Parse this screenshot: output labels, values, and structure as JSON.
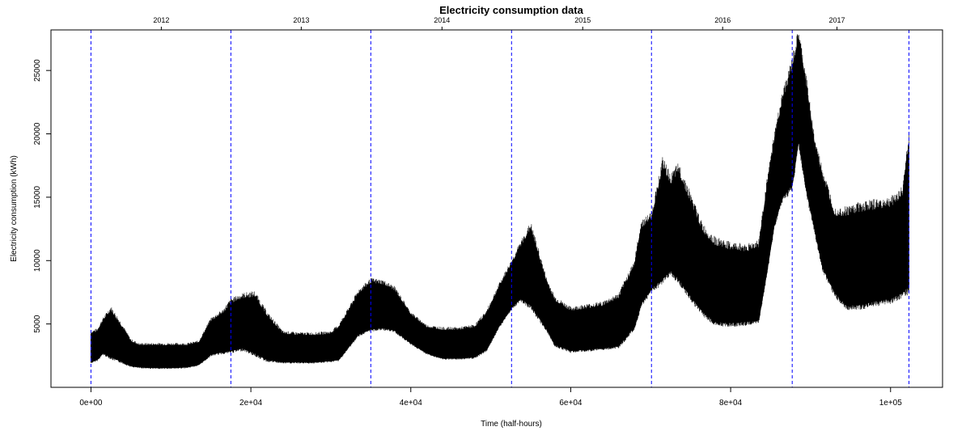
{
  "chart_data": {
    "type": "line",
    "title": "Electricity consumption data",
    "xlabel": "Time (half-hours)",
    "ylabel": "Electricity consumption (kWh)",
    "xlim": [
      -5000,
      106500
    ],
    "ylim": [
      0,
      28200
    ],
    "x_ticks": [
      0,
      20000,
      40000,
      60000,
      80000,
      100000
    ],
    "x_tick_labels": [
      "0e+00",
      "2e+04",
      "4e+04",
      "6e+04",
      "8e+04",
      "1e+05"
    ],
    "y_ticks": [
      5000,
      10000,
      15000,
      20000,
      25000
    ],
    "y_tick_labels": [
      "5000",
      "10000",
      "15000",
      "20000",
      "25000"
    ],
    "top_axis_labels": [
      {
        "label": "2012",
        "x": 8800
      },
      {
        "label": "2013",
        "x": 26300
      },
      {
        "label": "2014",
        "x": 43900
      },
      {
        "label": "2015",
        "x": 61500
      },
      {
        "label": "2016",
        "x": 79000
      },
      {
        "label": "2017",
        "x": 93300
      }
    ],
    "year_boundaries": [
      0,
      17500,
      35000,
      52600,
      70100,
      87700,
      102300
    ],
    "boundary_color": "#0000ff",
    "series_color": "#000000",
    "envelope_x": [
      0,
      800,
      1500,
      2500,
      4000,
      5000,
      6000,
      8000,
      10000,
      12000,
      13500,
      15000,
      16500,
      17500,
      19000,
      20500,
      22000,
      24000,
      26000,
      28000,
      30000,
      31000,
      32500,
      33500,
      35000,
      36500,
      38000,
      40000,
      42000,
      44000,
      46000,
      48000,
      49500,
      51000,
      52600,
      53700,
      55000,
      57000,
      58000,
      60000,
      62000,
      64000,
      66000,
      68000,
      68800,
      70100,
      71500,
      72500,
      73500,
      75000,
      76500,
      78000,
      80000,
      82000,
      83500,
      84500,
      85500,
      86500,
      87700,
      88500,
      89500,
      90500,
      91500,
      93000,
      94500,
      96000,
      98000,
      100000,
      101500,
      102300
    ],
    "envelope_low": [
      2000,
      2200,
      2700,
      2400,
      2000,
      1700,
      1600,
      1550,
      1550,
      1600,
      1800,
      2600,
      2800,
      2900,
      3100,
      2700,
      2200,
      2000,
      2000,
      2000,
      2100,
      2200,
      3400,
      4200,
      4600,
      4700,
      4500,
      3500,
      2700,
      2300,
      2300,
      2400,
      3000,
      4800,
      6300,
      7000,
      6500,
      4600,
      3400,
      2900,
      3000,
      3100,
      3300,
      4800,
      6600,
      7800,
      8600,
      9200,
      8600,
      7200,
      6000,
      5200,
      5100,
      5200,
      5300,
      9000,
      13000,
      15000,
      16000,
      19500,
      15500,
      12500,
      9500,
      7500,
      6500,
      6500,
      6800,
      7000,
      7500,
      8000
    ],
    "envelope_high": [
      4200,
      4400,
      5200,
      6000,
      4600,
      3600,
      3300,
      3300,
      3300,
      3300,
      3500,
      5200,
      5800,
      6600,
      7000,
      7100,
      5600,
      4200,
      4100,
      4100,
      4200,
      4700,
      6300,
      7400,
      8200,
      8100,
      7600,
      5700,
      4700,
      4500,
      4500,
      4700,
      5800,
      7800,
      9700,
      11000,
      12400,
      8200,
      6800,
      6000,
      6200,
      6400,
      7000,
      9600,
      12500,
      13200,
      17200,
      16000,
      16800,
      14500,
      12200,
      11200,
      10800,
      10700,
      11000,
      15500,
      19500,
      22500,
      25000,
      27400,
      23500,
      19000,
      16500,
      13500,
      13500,
      13800,
      14000,
      14200,
      15000,
      19300
    ],
    "grid": false,
    "legend": "none"
  }
}
